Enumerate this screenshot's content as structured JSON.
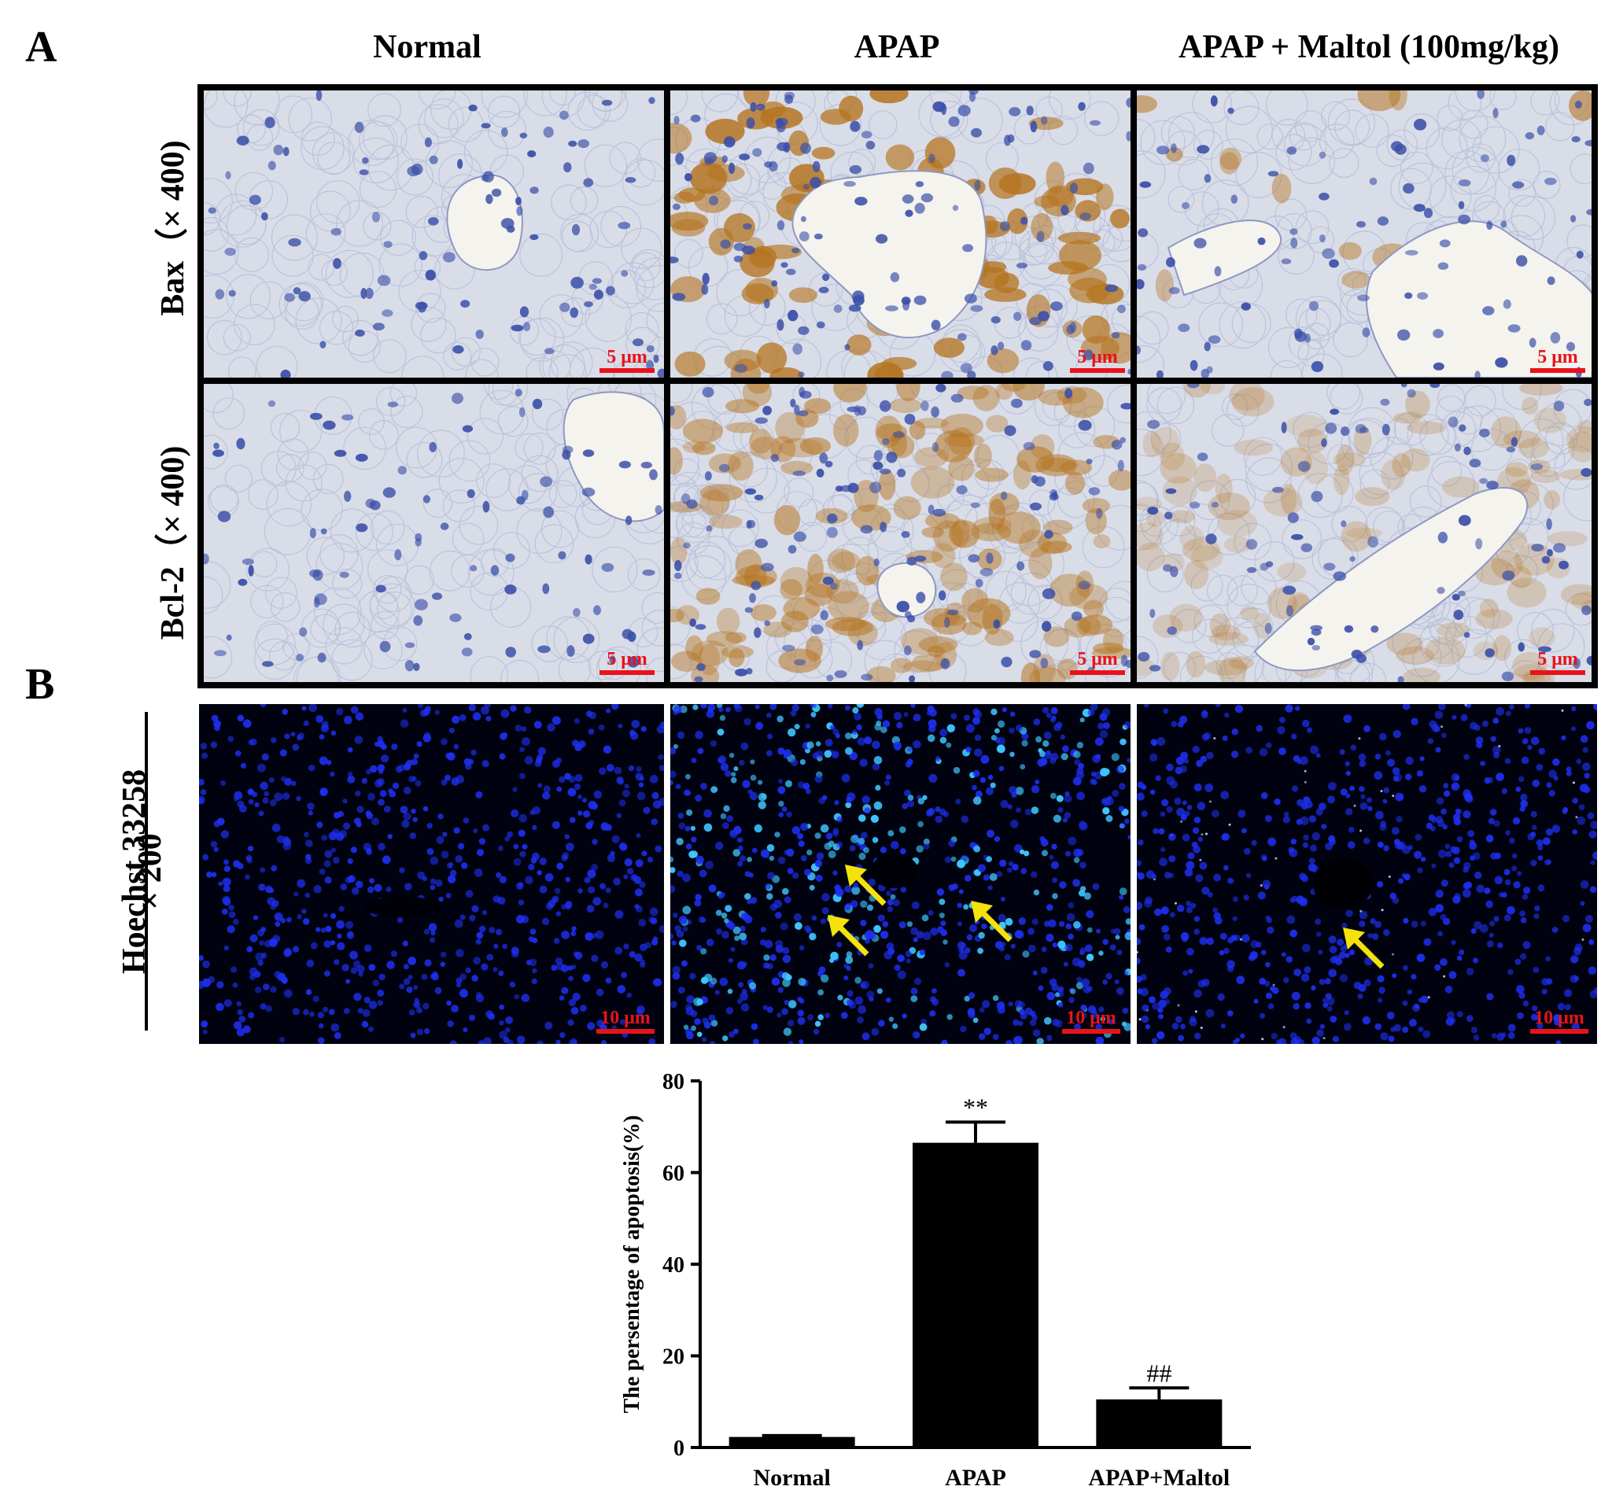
{
  "figure": {
    "panel_a_label": "A",
    "panel_b_label": "B",
    "columns": [
      "Normal",
      "APAP",
      "APAP + Maltol (100mg/kg)"
    ],
    "rows_a": [
      "Bax（× 400)",
      "Bcl-2（× 400)"
    ],
    "row_b_top": "Hoechst 33258",
    "row_b_bottom": "× 200",
    "scale_a": "5 μm",
    "scale_b": "10 μm",
    "colors": {
      "ihc_background": "#d9dde8",
      "hematoxylin_blue": "#3b4fa8",
      "dab_brown": "#b5741f",
      "hoechst_blue": "#1e2ff0",
      "hoechst_bright": "#3fc6ff",
      "scale_red": "#e8131a",
      "arrow_yellow": "#f5e20a"
    }
  },
  "chart_data": {
    "type": "bar",
    "categories": [
      "Normal",
      "APAP",
      "APAP+Maltol"
    ],
    "values": [
      2.3,
      66.5,
      10.5
    ],
    "errors": [
      0.3,
      4.5,
      2.5
    ],
    "significance": [
      "",
      "**",
      "##"
    ],
    "ylabel": "The persentage of apoptosis(%)",
    "xlabel": "",
    "ylim": [
      0,
      80
    ],
    "yticks": [
      0,
      20,
      40,
      60,
      80
    ],
    "bar_color": "#000000"
  }
}
